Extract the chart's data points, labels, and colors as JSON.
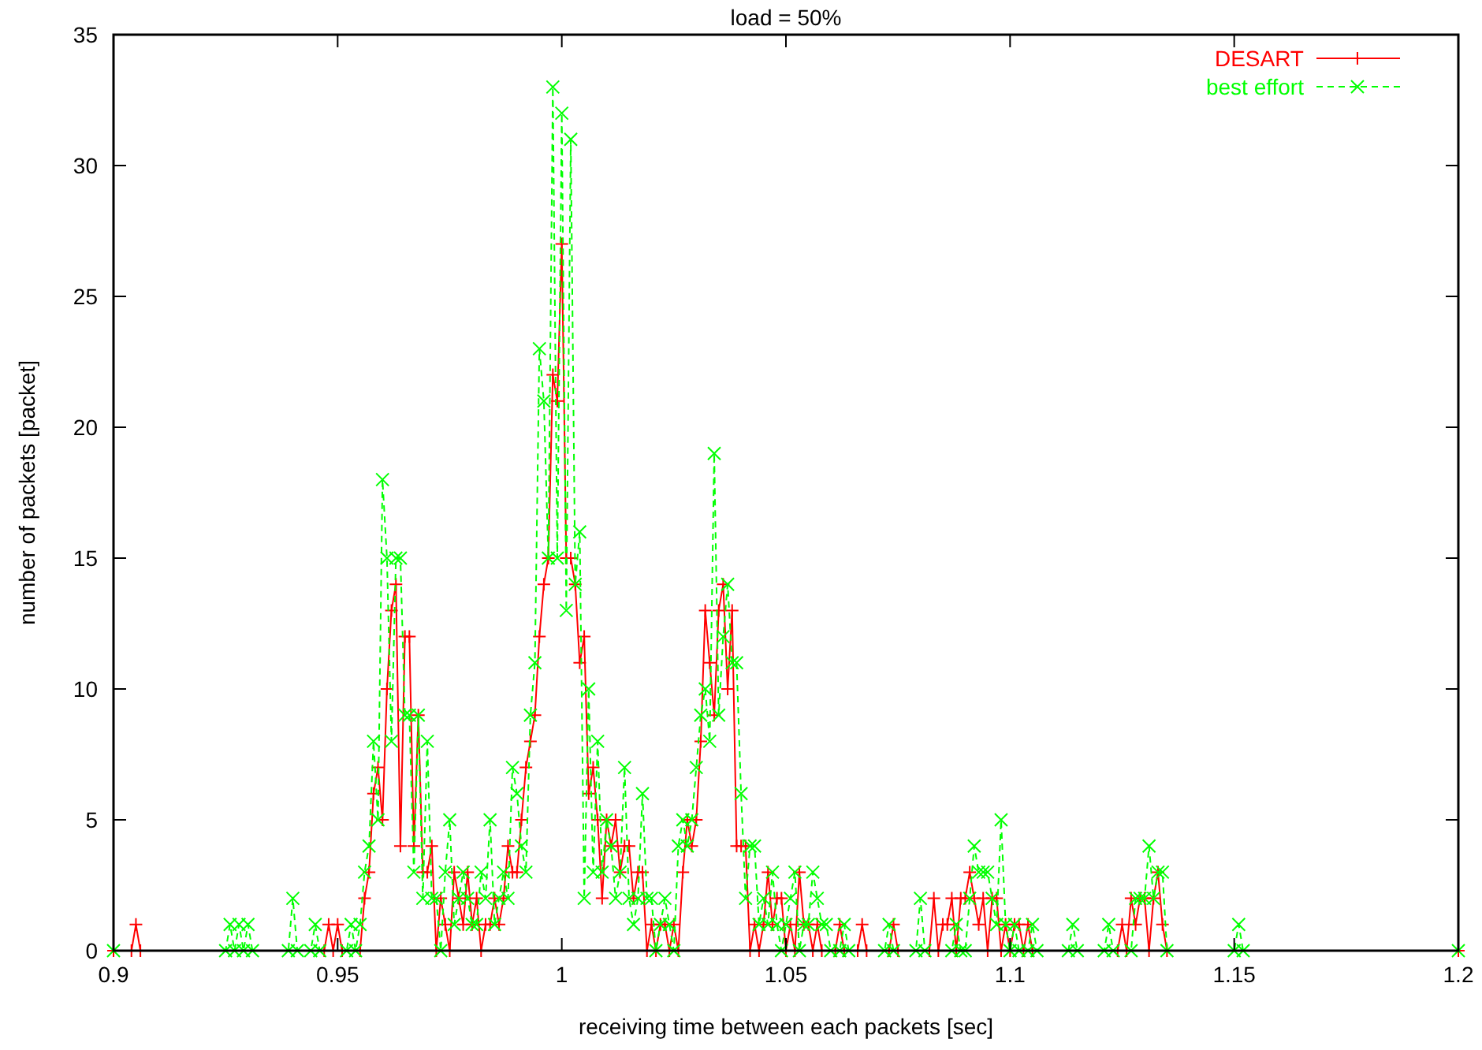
{
  "chart_data": {
    "type": "line",
    "title": "load = 50%",
    "xlabel": "receiving time between each packets [sec]",
    "ylabel": "number of packets [packet]",
    "xlim": [
      0.9,
      1.2
    ],
    "xticks": [
      0.9,
      0.95,
      1,
      1.05,
      1.1,
      1.15,
      1.2
    ],
    "ylim": [
      0,
      35
    ],
    "yticks": [
      0,
      5,
      10,
      15,
      20,
      25,
      30,
      35
    ],
    "grid": false,
    "legend": "top right",
    "series": [
      {
        "name": "DESART",
        "color": "#ff0000",
        "marker": "cross",
        "line_style": "solid",
        "x": [
          0.9,
          0.904,
          0.905,
          0.906,
          0.947,
          0.948,
          0.949,
          0.95,
          0.951,
          0.955,
          0.956,
          0.957,
          0.958,
          0.959,
          0.96,
          0.961,
          0.962,
          0.963,
          0.964,
          0.965,
          0.966,
          0.967,
          0.968,
          0.969,
          0.97,
          0.971,
          0.972,
          0.973,
          0.974,
          0.975,
          0.976,
          0.977,
          0.978,
          0.979,
          0.98,
          0.981,
          0.982,
          0.983,
          0.984,
          0.985,
          0.986,
          0.987,
          0.988,
          0.989,
          0.99,
          0.991,
          0.992,
          0.993,
          0.994,
          0.995,
          0.996,
          0.997,
          0.998,
          0.999,
          1,
          1.001,
          1.002,
          1.003,
          1.004,
          1.005,
          1.006,
          1.007,
          1.008,
          1.009,
          1.01,
          1.011,
          1.012,
          1.013,
          1.014,
          1.015,
          1.016,
          1.017,
          1.018,
          1.019,
          1.02,
          1.021,
          1.022,
          1.023,
          1.024,
          1.025,
          1.026,
          1.027,
          1.028,
          1.029,
          1.03,
          1.031,
          1.032,
          1.033,
          1.034,
          1.035,
          1.036,
          1.037,
          1.038,
          1.039,
          1.04,
          1.041,
          1.042,
          1.043,
          1.044,
          1.045,
          1.046,
          1.047,
          1.048,
          1.049,
          1.05,
          1.051,
          1.052,
          1.053,
          1.054,
          1.055,
          1.056,
          1.057,
          1.058,
          1.061,
          1.062,
          1.063,
          1.066,
          1.067,
          1.068,
          1.073,
          1.074,
          1.075,
          1.082,
          1.083,
          1.084,
          1.085,
          1.086,
          1.087,
          1.088,
          1.089,
          1.09,
          1.091,
          1.092,
          1.093,
          1.094,
          1.095,
          1.096,
          1.097,
          1.098,
          1.099,
          1.1,
          1.101,
          1.102,
          1.103,
          1.104,
          1.105,
          1.124,
          1.125,
          1.126,
          1.127,
          1.128,
          1.129,
          1.13,
          1.131,
          1.132,
          1.133,
          1.134,
          1.135,
          1.2
        ],
        "values": [
          0,
          0,
          1,
          0,
          0,
          1,
          0,
          1,
          0,
          0,
          2,
          3,
          6,
          7,
          5,
          10,
          13,
          14,
          4,
          12,
          12,
          4,
          9,
          3,
          3,
          4,
          0,
          2,
          1,
          0,
          3,
          2,
          1,
          3,
          1,
          2,
          0,
          1,
          1,
          2,
          1,
          2,
          4,
          3,
          3,
          5,
          7,
          8,
          9,
          12,
          14,
          15,
          22,
          21,
          27,
          15,
          15,
          14,
          11,
          12,
          6,
          7,
          5,
          2,
          5,
          4,
          5,
          3,
          4,
          4,
          2,
          3,
          3,
          0,
          1,
          0,
          1,
          1,
          0,
          1,
          0,
          3,
          5,
          4,
          5,
          8,
          13,
          11,
          9,
          13,
          14,
          10,
          13,
          4,
          4,
          4,
          0,
          1,
          0,
          1,
          3,
          1,
          2,
          2,
          0,
          1,
          0,
          3,
          1,
          1,
          0,
          1,
          0,
          0,
          1,
          0,
          0,
          1,
          0,
          0,
          1,
          0,
          0,
          2,
          0,
          1,
          1,
          2,
          0,
          2,
          2,
          3,
          2,
          1,
          2,
          0,
          2,
          2,
          0,
          1,
          0,
          1,
          1,
          0,
          1,
          0,
          0,
          1,
          0,
          2,
          1,
          2,
          2,
          0,
          2,
          3,
          1,
          0,
          0
        ]
      },
      {
        "name": "best effort",
        "color": "#00ff00",
        "marker": "x",
        "line_style": "dashed",
        "x": [
          0.9,
          0.925,
          0.926,
          0.927,
          0.928,
          0.929,
          0.93,
          0.931,
          0.939,
          0.94,
          0.941,
          0.944,
          0.945,
          0.946,
          0.952,
          0.953,
          0.954,
          0.955,
          0.956,
          0.957,
          0.958,
          0.959,
          0.96,
          0.961,
          0.962,
          0.963,
          0.964,
          0.965,
          0.966,
          0.967,
          0.968,
          0.969,
          0.97,
          0.971,
          0.972,
          0.973,
          0.974,
          0.975,
          0.976,
          0.977,
          0.978,
          0.979,
          0.98,
          0.981,
          0.982,
          0.983,
          0.984,
          0.985,
          0.986,
          0.987,
          0.988,
          0.989,
          0.99,
          0.991,
          0.992,
          0.993,
          0.994,
          0.995,
          0.996,
          0.997,
          0.998,
          0.999,
          1,
          1.001,
          1.002,
          1.003,
          1.004,
          1.005,
          1.006,
          1.007,
          1.008,
          1.009,
          1.01,
          1.011,
          1.012,
          1.013,
          1.014,
          1.015,
          1.016,
          1.017,
          1.018,
          1.019,
          1.02,
          1.021,
          1.022,
          1.023,
          1.024,
          1.025,
          1.026,
          1.027,
          1.028,
          1.029,
          1.03,
          1.031,
          1.032,
          1.033,
          1.034,
          1.035,
          1.036,
          1.037,
          1.038,
          1.039,
          1.04,
          1.041,
          1.042,
          1.043,
          1.044,
          1.045,
          1.046,
          1.047,
          1.048,
          1.049,
          1.05,
          1.051,
          1.052,
          1.053,
          1.054,
          1.055,
          1.056,
          1.057,
          1.058,
          1.059,
          1.06,
          1.062,
          1.063,
          1.064,
          1.072,
          1.073,
          1.074,
          1.079,
          1.08,
          1.081,
          1.087,
          1.088,
          1.089,
          1.09,
          1.091,
          1.092,
          1.093,
          1.094,
          1.095,
          1.096,
          1.097,
          1.098,
          1.099,
          1.1,
          1.101,
          1.102,
          1.104,
          1.105,
          1.106,
          1.113,
          1.114,
          1.115,
          1.121,
          1.122,
          1.123,
          1.127,
          1.128,
          1.129,
          1.13,
          1.131,
          1.132,
          1.133,
          1.134,
          1.135,
          1.15,
          1.151,
          1.152,
          1.2
        ],
        "values": [
          0,
          0,
          1,
          0,
          1,
          0,
          1,
          0,
          0,
          2,
          0,
          0,
          1,
          0,
          0,
          1,
          0,
          1,
          3,
          4,
          8,
          5,
          18,
          15,
          8,
          15,
          15,
          9,
          9,
          3,
          9,
          2,
          8,
          2,
          2,
          0,
          3,
          5,
          1,
          2,
          3,
          2,
          1,
          1,
          3,
          2,
          5,
          1,
          2,
          3,
          2,
          7,
          6,
          4,
          3,
          9,
          11,
          23,
          21,
          15,
          33,
          15,
          32,
          13,
          31,
          14,
          16,
          2,
          10,
          3,
          8,
          3,
          5,
          4,
          2,
          3,
          7,
          2,
          1,
          2,
          6,
          2,
          2,
          0,
          1,
          2,
          1,
          0,
          4,
          5,
          4,
          5,
          7,
          9,
          10,
          8,
          19,
          9,
          12,
          14,
          11,
          11,
          6,
          2,
          4,
          4,
          1,
          2,
          1,
          3,
          1,
          0,
          1,
          2,
          3,
          0,
          1,
          1,
          3,
          2,
          1,
          1,
          0,
          0,
          1,
          0,
          0,
          1,
          0,
          0,
          2,
          0,
          0,
          1,
          0,
          0,
          2,
          4,
          3,
          3,
          3,
          2,
          1,
          5,
          1,
          0,
          1,
          0,
          0,
          1,
          0,
          0,
          1,
          0,
          0,
          1,
          0,
          0,
          2,
          2,
          2,
          4,
          2,
          3,
          3,
          0,
          0,
          1,
          0,
          0
        ]
      }
    ]
  }
}
